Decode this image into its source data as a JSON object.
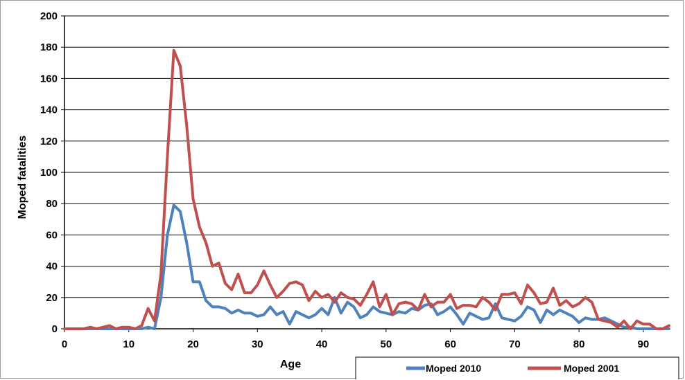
{
  "chart_data": {
    "type": "line",
    "title": "",
    "xlabel": "Age",
    "ylabel": "Moped fatalities",
    "xlim": [
      0,
      94
    ],
    "ylim": [
      0,
      200
    ],
    "x_ticks": [
      0,
      10,
      20,
      30,
      40,
      50,
      60,
      70,
      80,
      90
    ],
    "y_ticks": [
      0,
      20,
      40,
      60,
      80,
      100,
      120,
      140,
      160,
      180,
      200
    ],
    "grid": "horizontal",
    "legend_position": "bottom-right",
    "x": [
      0,
      1,
      2,
      3,
      4,
      5,
      6,
      7,
      8,
      9,
      10,
      11,
      12,
      13,
      14,
      15,
      16,
      17,
      18,
      19,
      20,
      21,
      22,
      23,
      24,
      25,
      26,
      27,
      28,
      29,
      30,
      31,
      32,
      33,
      34,
      35,
      36,
      37,
      38,
      39,
      40,
      41,
      42,
      43,
      44,
      45,
      46,
      47,
      48,
      49,
      50,
      51,
      52,
      53,
      54,
      55,
      56,
      57,
      58,
      59,
      60,
      61,
      62,
      63,
      64,
      65,
      66,
      67,
      68,
      69,
      70,
      71,
      72,
      73,
      74,
      75,
      76,
      77,
      78,
      79,
      80,
      81,
      82,
      83,
      84,
      85,
      86,
      87,
      88,
      89,
      90,
      91,
      92,
      93,
      94
    ],
    "series": [
      {
        "name": "Moped 2010",
        "color": "#4f81bd",
        "values": [
          0,
          0,
          0,
          0,
          0,
          0,
          0,
          0,
          0,
          0,
          0,
          0,
          0,
          1,
          0,
          20,
          60,
          79,
          75,
          55,
          30,
          30,
          18,
          14,
          14,
          13,
          10,
          12,
          10,
          10,
          8,
          9,
          14,
          9,
          11,
          3,
          11,
          9,
          7,
          9,
          13,
          9,
          20,
          10,
          17,
          14,
          7,
          9,
          14,
          11,
          10,
          9,
          11,
          10,
          13,
          12,
          15,
          16,
          9,
          11,
          14,
          9,
          3,
          10,
          8,
          6,
          7,
          16,
          7,
          6,
          5,
          8,
          14,
          12,
          4,
          12,
          9,
          12,
          10,
          8,
          4,
          7,
          6,
          6,
          7,
          5,
          3,
          1,
          1,
          0,
          0,
          0,
          0,
          0,
          0
        ]
      },
      {
        "name": "Moped 2001",
        "color": "#c0504d",
        "values": [
          0,
          0,
          0,
          0,
          1,
          0,
          1,
          2,
          0,
          1,
          1,
          0,
          2,
          13,
          5,
          35,
          110,
          178,
          168,
          130,
          83,
          65,
          55,
          40,
          42,
          29,
          25,
          35,
          23,
          23,
          28,
          37,
          28,
          20,
          24,
          29,
          30,
          28,
          18,
          24,
          20,
          22,
          17,
          23,
          20,
          19,
          15,
          22,
          30,
          14,
          22,
          9,
          16,
          17,
          16,
          12,
          22,
          14,
          17,
          17,
          22,
          13,
          15,
          15,
          14,
          20,
          17,
          12,
          22,
          22,
          23,
          16,
          28,
          23,
          16,
          17,
          26,
          15,
          18,
          14,
          16,
          20,
          17,
          6,
          5,
          4,
          1,
          5,
          0,
          5,
          3,
          3,
          0,
          0,
          2
        ]
      }
    ]
  }
}
